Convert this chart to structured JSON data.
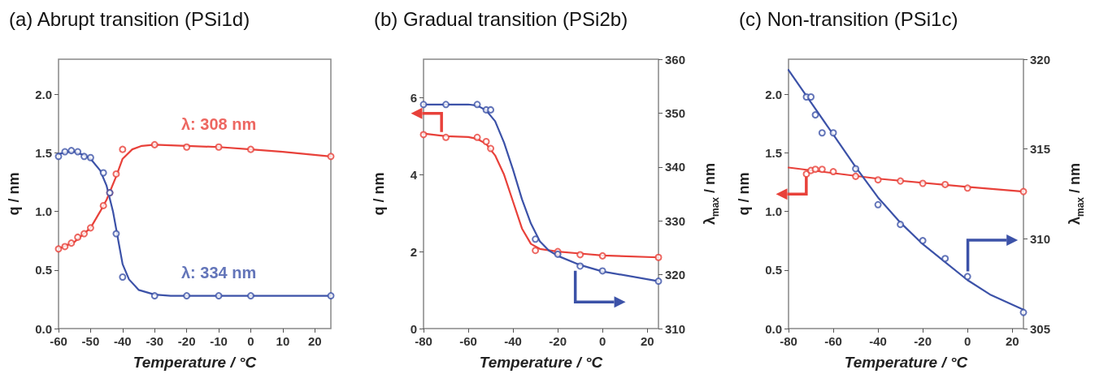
{
  "chart_data": [
    {
      "type": "scatter",
      "title": "(a) Abrupt transition (PSi1d)",
      "xlabel": "Temperature / °C",
      "ylabel": "q / nm",
      "xlim": [
        -60,
        25
      ],
      "xticks": [
        -60,
        -50,
        -40,
        -30,
        -20,
        -10,
        0,
        10,
        20
      ],
      "ylim": [
        0,
        2.3
      ],
      "yticks": [
        {
          "value": 0,
          "label": "0.0"
        },
        0.5,
        {
          "value": 1,
          "label": "1.0"
        },
        1.5,
        {
          "value": 2,
          "label": "2.0"
        }
      ],
      "grid": false,
      "legend": false,
      "series": [
        {
          "name": "λ: 308 nm",
          "marker": "circle",
          "color": "#e8413a",
          "x": [
            -60,
            -58,
            -56,
            -54,
            -52,
            -50,
            -46,
            -44,
            -42,
            -40,
            -30,
            -20,
            -10,
            0,
            25
          ],
          "values": [
            0.68,
            0.7,
            0.73,
            0.78,
            0.81,
            0.86,
            1.05,
            1.16,
            1.32,
            1.53,
            1.57,
            1.55,
            1.55,
            1.53,
            1.47
          ]
        },
        {
          "name": "λ: 334 nm",
          "marker": "circle",
          "color": "#3c52a8",
          "x": [
            -60,
            -58,
            -56,
            -54,
            -52,
            -50,
            -46,
            -44,
            -42,
            -40,
            -30,
            -20,
            -10,
            0,
            25
          ],
          "values": [
            1.47,
            1.51,
            1.52,
            1.51,
            1.47,
            1.46,
            1.33,
            1.16,
            0.81,
            0.44,
            0.28,
            0.28,
            0.28,
            0.28,
            0.28
          ]
        },
        {
          "type": "line",
          "marker": "none",
          "color": "#e8413a",
          "x": [
            -60,
            -55,
            -50,
            -47,
            -45,
            -42,
            -40,
            -37,
            -34,
            -30,
            -20,
            -10,
            0,
            10,
            25
          ],
          "values": [
            0.68,
            0.74,
            0.86,
            1.0,
            1.1,
            1.3,
            1.45,
            1.53,
            1.56,
            1.57,
            1.56,
            1.55,
            1.53,
            1.51,
            1.47
          ]
        },
        {
          "type": "line",
          "marker": "none",
          "color": "#3c52a8",
          "x": [
            -60,
            -57,
            -55,
            -52,
            -50,
            -47,
            -45,
            -43,
            -42,
            -41,
            -40,
            -38,
            -35,
            -30,
            -25,
            0,
            25
          ],
          "values": [
            1.49,
            1.51,
            1.51,
            1.48,
            1.45,
            1.35,
            1.22,
            1.0,
            0.85,
            0.7,
            0.55,
            0.42,
            0.33,
            0.29,
            0.28,
            0.28,
            0.28
          ]
        }
      ]
    },
    {
      "type": "scatter",
      "title": "(b) Gradual transition (PSi2b)",
      "xlabel": "Temperature / °C",
      "ylabel": "q / nm",
      "y2label": "λ$_{max}$ / nm",
      "xlim": [
        -80,
        25
      ],
      "xticks": [
        -80,
        -60,
        -40,
        -20,
        0,
        20
      ],
      "ylim": [
        0,
        7
      ],
      "yticks": [
        0,
        2,
        4,
        6
      ],
      "y2lim": [
        310,
        360
      ],
      "y2ticks": [
        310,
        320,
        330,
        340,
        350,
        360
      ],
      "grid": false,
      "legend": false,
      "series": [
        {
          "marker": "circle",
          "color": "#e8413a",
          "x": [
            -80,
            -70,
            -56,
            -52,
            -50,
            -30,
            -20,
            -10,
            0,
            25
          ],
          "values": [
            5.04,
            4.97,
            4.97,
            4.86,
            4.68,
            2.03,
            2.0,
            1.92,
            1.89,
            1.85
          ]
        },
        {
          "marker": "circle",
          "axis": "y2",
          "color": "#3c52a8",
          "x": [
            -80,
            -70,
            -56,
            -52,
            -50,
            -30,
            -20,
            -10,
            0,
            25
          ],
          "values": [
            351.6,
            351.6,
            351.6,
            350.6,
            350.6,
            326.6,
            323.8,
            321.6,
            320.7,
            318.8
          ]
        },
        {
          "type": "line",
          "marker": "none",
          "color": "#e8413a",
          "x": [
            -80,
            -70,
            -60,
            -56,
            -52,
            -48,
            -44,
            -40,
            -36,
            -32,
            -28,
            -20,
            -10,
            0,
            25
          ],
          "values": [
            5.07,
            5.0,
            4.98,
            4.93,
            4.8,
            4.5,
            4.0,
            3.3,
            2.6,
            2.2,
            2.07,
            2.0,
            1.95,
            1.9,
            1.85
          ]
        },
        {
          "type": "line",
          "marker": "none",
          "axis": "y2",
          "color": "#3c52a8",
          "x": [
            -80,
            -60,
            -56,
            -52,
            -48,
            -44,
            -40,
            -36,
            -32,
            -28,
            -24,
            -20,
            -10,
            0,
            25
          ],
          "values": [
            351.6,
            351.6,
            351.4,
            350.5,
            348.5,
            344.5,
            339.5,
            334,
            329.5,
            326.2,
            324.5,
            323.5,
            321.8,
            320.6,
            318.8
          ]
        }
      ]
    },
    {
      "type": "scatter",
      "title": "(c) Non-transition (PSi1c)",
      "xlabel": "Temperature / °C",
      "ylabel": "q / nm",
      "y2label": "λ$_{max}$ / nm",
      "xlim": [
        -80,
        25
      ],
      "xticks": [
        -80,
        -60,
        -40,
        -20,
        0,
        20
      ],
      "ylim": [
        0,
        2.3
      ],
      "yticks": [
        {
          "value": 0,
          "label": "0.0"
        },
        0.5,
        {
          "value": 1,
          "label": "1.0"
        },
        1.5,
        {
          "value": 2,
          "label": "2.0"
        }
      ],
      "y2lim": [
        305,
        320
      ],
      "y2ticks": [
        305,
        310,
        315,
        320
      ],
      "grid": false,
      "legend": false,
      "series": [
        {
          "marker": "circle",
          "color": "#e8413a",
          "x": [
            -72,
            -70,
            -68,
            -65,
            -60,
            -50,
            -40,
            -30,
            -20,
            -10,
            0,
            25
          ],
          "values": [
            1.32,
            1.35,
            1.36,
            1.36,
            1.34,
            1.3,
            1.27,
            1.26,
            1.24,
            1.23,
            1.2,
            1.17
          ]
        },
        {
          "marker": "circle",
          "axis": "y2",
          "color": "#3c52a8",
          "x": [
            -72,
            -70,
            -68,
            -65,
            -60,
            -50,
            -40,
            -30,
            -20,
            -10,
            0,
            25
          ],
          "values": [
            317.9,
            317.9,
            316.9,
            315.9,
            315.9,
            313.9,
            311.9,
            310.8,
            309.9,
            308.9,
            307.9,
            305.9
          ]
        },
        {
          "type": "line",
          "marker": "none",
          "color": "#e8413a",
          "x": [
            -80,
            -40,
            0,
            25
          ],
          "values": [
            1.375,
            1.28,
            1.21,
            1.17
          ]
        },
        {
          "type": "line",
          "marker": "none",
          "axis": "y2",
          "color": "#3c52a8",
          "x": [
            -80,
            -70,
            -60,
            -50,
            -40,
            -30,
            -20,
            -10,
            0,
            10,
            25
          ],
          "values": [
            319.4,
            317.6,
            315.8,
            314.0,
            312.3,
            310.9,
            309.7,
            308.7,
            307.7,
            306.9,
            306.05
          ]
        }
      ]
    }
  ]
}
